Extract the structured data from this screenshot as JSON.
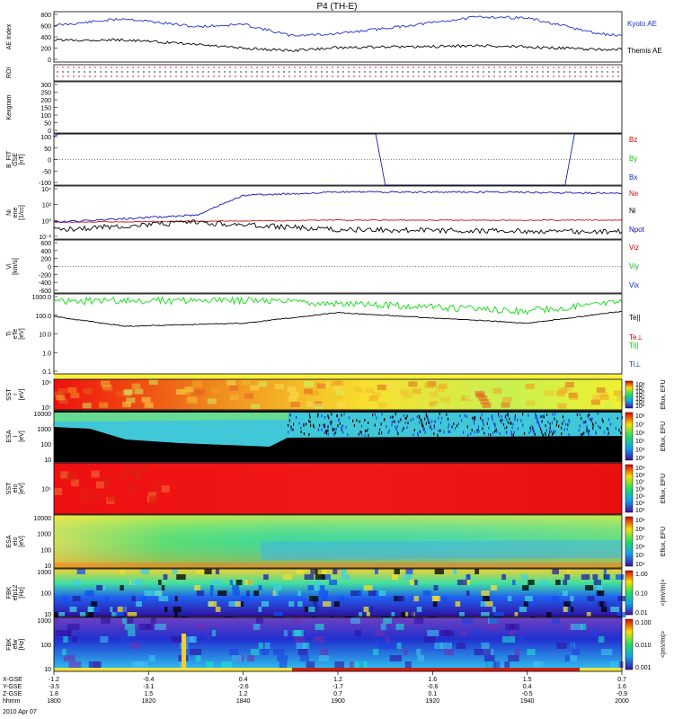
{
  "title": "P4 (TH-E)",
  "colors": {
    "kyoto": "#1f2fd0",
    "themis": "#000000",
    "bz": "#d00000",
    "by": "#10c010",
    "bx": "#1020c0",
    "ne": "#d01010",
    "ni": "#000000",
    "npot": "#1010c0",
    "te": "#000000",
    "ti": "#10dd10"
  },
  "chart_data": [
    {
      "type": "line",
      "panel": "ae",
      "ylabel": "AE Index",
      "yticks": [
        "800",
        "600",
        "400",
        "200",
        "0"
      ],
      "ylim": [
        0,
        800
      ],
      "series": [
        {
          "name": "Kyoto AE",
          "x": [
            1800,
            1815,
            1830,
            1840,
            1850,
            1900,
            1915,
            1930,
            1940,
            1955,
            2000
          ],
          "values": [
            580,
            690,
            560,
            600,
            420,
            450,
            580,
            720,
            700,
            450,
            420
          ]
        },
        {
          "name": "Themis AE",
          "x": [
            1800,
            1815,
            1830,
            1840,
            1850,
            1900,
            1915,
            1930,
            1940,
            1955,
            2000
          ],
          "values": [
            350,
            350,
            280,
            220,
            180,
            230,
            240,
            260,
            240,
            200,
            200
          ]
        }
      ]
    },
    {
      "type": "scatter",
      "panel": "roi",
      "ylabel": "ROI"
    },
    {
      "type": "line",
      "panel": "kp",
      "ylabel": "Kexgram",
      "yticks": [
        "300",
        "250",
        "200",
        "150",
        "100",
        "50",
        "0"
      ],
      "ylim": [
        0,
        300
      ]
    },
    {
      "type": "line",
      "panel": "b",
      "ylabel": "B_FIT\nGSE\n[nT]",
      "yticks": [
        "100",
        "50",
        "0",
        "-50",
        "-100"
      ],
      "ylim": [
        -100,
        100
      ],
      "series": [
        {
          "name": "Bz",
          "values": []
        },
        {
          "name": "By",
          "values": []
        },
        {
          "name": "Bx",
          "x": [
            1800,
            1801,
            1908,
            1910,
            1948,
            1950,
            2000
          ],
          "values": [
            90,
            100,
            100,
            -100,
            -100,
            100,
            100
          ]
        }
      ]
    },
    {
      "type": "line",
      "panel": "n",
      "ylabel": "Ni\nene\n[1/cc]",
      "yticks": [
        "10⁴",
        "10²",
        "10⁰",
        "10⁻²"
      ],
      "series": [
        {
          "name": "Ne",
          "x": [
            1800,
            1900,
            2000
          ],
          "values": [
            1,
            2,
            2
          ]
        },
        {
          "name": "Ni",
          "x": [
            1800,
            1830,
            1845,
            1900,
            2000
          ],
          "values": [
            0.1,
            1,
            0.3,
            0.1,
            0.05
          ]
        },
        {
          "name": "Npot",
          "x": [
            1800,
            1830,
            1840,
            1900,
            1930,
            2000
          ],
          "values": [
            1,
            10,
            5000,
            15000,
            15000,
            10000
          ]
        }
      ]
    },
    {
      "type": "line",
      "panel": "v",
      "ylabel": "Vi\n[km/s]",
      "yticks": [
        "600",
        "400",
        "200",
        "0",
        "-200",
        "-400",
        "-600"
      ],
      "ylim": [
        -600,
        600
      ],
      "series": [
        {
          "name": "Viz",
          "values": []
        },
        {
          "name": "Viy",
          "values": []
        },
        {
          "name": "Vix",
          "values": []
        }
      ]
    },
    {
      "type": "line",
      "panel": "t",
      "ylabel": "Ti\neTe\n[eV]",
      "yticks": [
        "1000.0",
        "100.0",
        "10.0",
        "1.0",
        "0.1"
      ],
      "series": [
        {
          "name": "Te||",
          "values": []
        },
        {
          "name": "Te⊥",
          "x": [
            1800,
            1815,
            1840,
            1900,
            1940,
            2000
          ],
          "values": [
            150,
            40,
            60,
            250,
            60,
            300
          ]
        },
        {
          "name": "Ti||",
          "x": [
            1800,
            1840,
            1900,
            1940,
            2000
          ],
          "values": [
            1200,
            1300,
            900,
            300,
            1100
          ]
        },
        {
          "name": "Ti⊥",
          "values": []
        }
      ]
    },
    {
      "type": "heatmap",
      "panel": "sst_i",
      "ylabel": "SST\ni\n[eV]",
      "yticks": [
        "10⁶",
        "10⁵"
      ],
      "cbar": [
        "10⁸",
        "10⁷",
        "10⁶",
        "10⁵",
        "10⁴",
        "10³",
        "10²"
      ],
      "cbar_label": "Eflux, EFU"
    },
    {
      "type": "heatmap",
      "panel": "esa_i",
      "ylabel": "ESA\ni\n[eV]",
      "yticks": [
        "10000",
        "1000",
        "100",
        "10"
      ],
      "cbar": [
        "10⁸",
        "10⁷",
        "10⁶",
        "10⁵",
        "10⁴",
        "10³"
      ],
      "cbar_label": "Eflux, EFU"
    },
    {
      "type": "heatmap",
      "panel": "sst_e",
      "ylabel": "SST\neIo\n[eV]",
      "yticks": [
        "10⁵"
      ],
      "cbar": [
        "10⁹",
        "10⁸",
        "10⁷",
        "10⁶",
        "10⁵",
        "10⁴",
        "10³"
      ],
      "cbar_label": "Eflux, EFU"
    },
    {
      "type": "heatmap",
      "panel": "esa_e",
      "ylabel": "ESA\neIo\n[eV]",
      "yticks": [
        "10000",
        "1000",
        "100",
        "10"
      ],
      "cbar": [
        "10⁹",
        "10⁸",
        "10⁷",
        "10⁶",
        "10⁵",
        "10⁴"
      ],
      "cbar_label": "Eflux, EFU"
    },
    {
      "type": "heatmap",
      "panel": "fbk1",
      "ylabel": "FBK\nefp12\n[Hz]",
      "yticks": [
        "1000",
        "100",
        "10"
      ],
      "cbar": [
        "1.00",
        "0.10",
        "0.01"
      ],
      "cbar_label": "<|mV/m|>"
    },
    {
      "type": "heatmap",
      "panel": "fbk2",
      "ylabel": "FBK\nefw\n[Hz]",
      "yticks": [
        "1000",
        "100",
        "10"
      ],
      "cbar": [
        "0.100",
        "0.010",
        "0.001"
      ],
      "cbar_label": "<|mV/m|>"
    }
  ],
  "xaxis": {
    "rows": [
      {
        "label": "X-GSE",
        "values": [
          "-1.2",
          "-0.4",
          "0.4",
          "1.2",
          "1.6",
          "1.5",
          "0.7"
        ]
      },
      {
        "label": "Y-GSE",
        "values": [
          "-3.5",
          "-3.1",
          "-2.6",
          "-1.7",
          "-0.6",
          "0.4",
          "1.6"
        ]
      },
      {
        "label": "Z-GSE",
        "values": [
          "1.8",
          "1.5",
          "1.2",
          "0.7",
          "0.1",
          "-0.5",
          "-0.9"
        ]
      },
      {
        "label": "hhmm",
        "values": [
          "1800",
          "1820",
          "1840",
          "1900",
          "1920",
          "1940",
          "2000"
        ]
      }
    ],
    "date": "2010 Apr 07"
  }
}
